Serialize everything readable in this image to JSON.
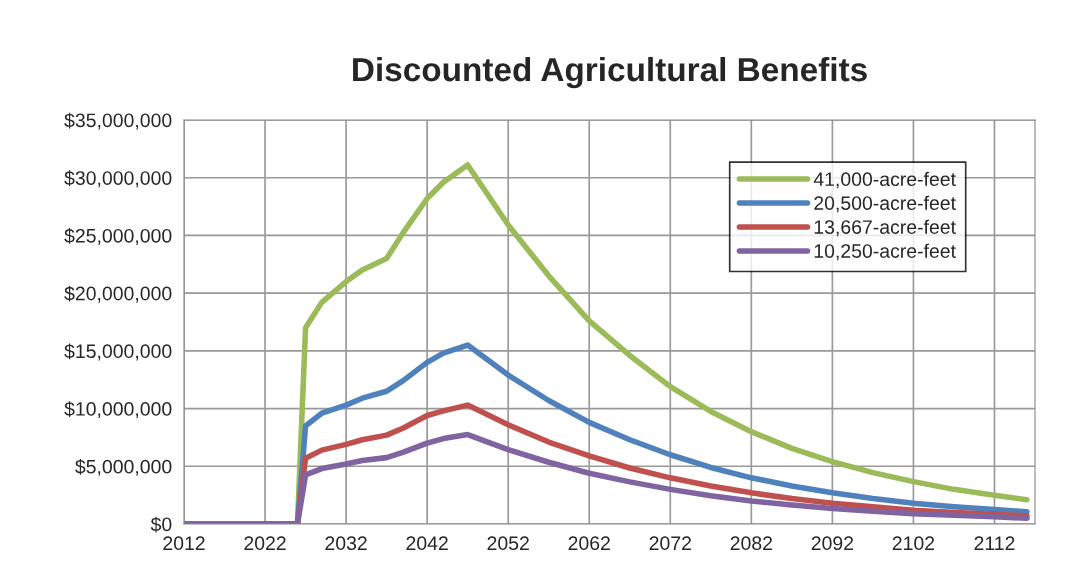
{
  "chart_data": {
    "type": "line",
    "title": "Discounted Agricultural Benefits",
    "x": [
      2012,
      2026,
      2027,
      2029,
      2032,
      2034,
      2037,
      2039,
      2042,
      2044,
      2047,
      2052,
      2057,
      2062,
      2067,
      2072,
      2077,
      2082,
      2087,
      2092,
      2097,
      2102,
      2107,
      2112,
      2116
    ],
    "series": [
      {
        "name": "41,000-acre-feet",
        "color": "#9bbb59",
        "values": [
          0,
          0,
          17000000,
          19200000,
          21000000,
          22000000,
          23000000,
          25200000,
          28200000,
          29600000,
          31100000,
          25900000,
          21500000,
          17600000,
          14600000,
          11900000,
          9750000,
          8000000,
          6550000,
          5400000,
          4450000,
          3670000,
          3000000,
          2500000,
          2100000
        ]
      },
      {
        "name": "20,500-acre-feet",
        "color": "#4f81bd",
        "values": [
          0,
          0,
          8500000,
          9600000,
          10300000,
          10900000,
          11500000,
          12400000,
          14000000,
          14800000,
          15500000,
          12900000,
          10700000,
          8800000,
          7300000,
          6000000,
          4900000,
          4000000,
          3300000,
          2700000,
          2200000,
          1800000,
          1500000,
          1250000,
          1050000
        ]
      },
      {
        "name": "13,667-acre-feet",
        "color": "#c0504d",
        "values": [
          0,
          0,
          5700000,
          6400000,
          6900000,
          7300000,
          7700000,
          8300000,
          9400000,
          9800000,
          10300000,
          8600000,
          7100000,
          5900000,
          4850000,
          4000000,
          3300000,
          2700000,
          2200000,
          1800000,
          1500000,
          1200000,
          1000000,
          850000,
          700000
        ]
      },
      {
        "name": "10,250-acre-feet",
        "color": "#8064a2",
        "values": [
          0,
          0,
          4250000,
          4800000,
          5200000,
          5500000,
          5750000,
          6200000,
          7000000,
          7400000,
          7750000,
          6450000,
          5350000,
          4400000,
          3650000,
          3000000,
          2450000,
          2000000,
          1650000,
          1350000,
          1100000,
          900000,
          750000,
          620000,
          500000
        ]
      }
    ],
    "xlim": [
      2012,
      2117
    ],
    "xticks": [
      2012,
      2022,
      2032,
      2042,
      2052,
      2062,
      2072,
      2082,
      2092,
      2102,
      2112
    ],
    "ylim": [
      0,
      35000000
    ],
    "yticks": [
      {
        "value": 0,
        "label": "$0"
      },
      {
        "value": 5000000,
        "label": "$5,000,000"
      },
      {
        "value": 10000000,
        "label": "$10,000,000"
      },
      {
        "value": 15000000,
        "label": "$15,000,000"
      },
      {
        "value": 20000000,
        "label": "$20,000,000"
      },
      {
        "value": 25000000,
        "label": "$25,000,000"
      },
      {
        "value": 30000000,
        "label": "$30,000,000"
      },
      {
        "value": 35000000,
        "label": "$35,000,000"
      }
    ],
    "grid": true,
    "legend": "top right"
  }
}
